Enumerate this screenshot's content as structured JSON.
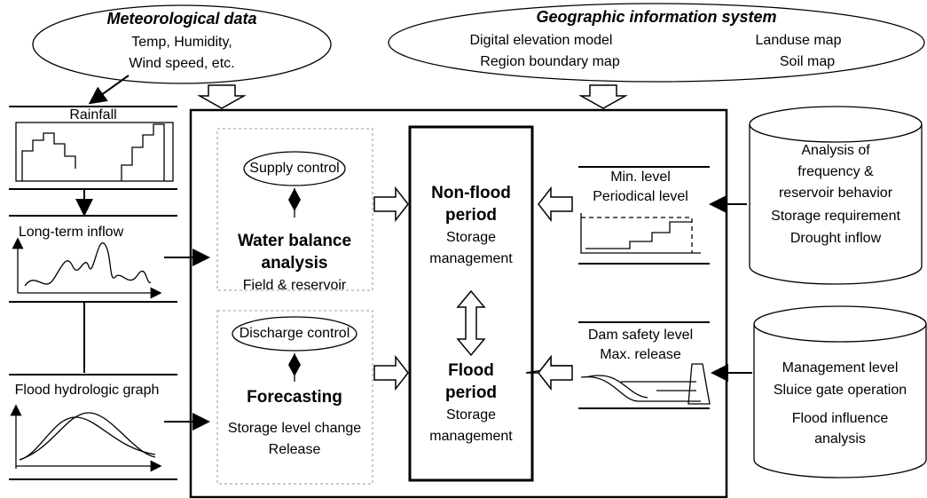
{
  "meteorological": {
    "title": "Meteorological data",
    "lines": [
      "Temp, Humidity,",
      "Wind speed, etc."
    ]
  },
  "gis": {
    "title": "Geographic information system",
    "items": [
      "Digital elevation model",
      "Landuse map",
      "Region boundary map",
      "Soil map"
    ]
  },
  "inputs": {
    "rainfall": "Rainfall",
    "long_term_inflow": "Long-term inflow",
    "flood_graph": "Flood hydrologic graph"
  },
  "water_balance": {
    "control": "Supply control",
    "title": [
      "Water balance",
      "analysis"
    ],
    "subtitle": "Field & reservoir"
  },
  "forecasting": {
    "control": "Discharge control",
    "title": "Forecasting",
    "lines": [
      "Storage level change",
      "Release"
    ]
  },
  "non_flood": {
    "title": [
      "Non-flood",
      "period"
    ],
    "lines": [
      "Storage",
      "management"
    ]
  },
  "flood": {
    "title": [
      "Flood",
      "period"
    ],
    "lines": [
      "Storage",
      "management"
    ]
  },
  "level_graphs": {
    "non_flood": [
      "Min. level",
      "Periodical level"
    ],
    "flood": [
      "Dam safety level",
      "Max. release"
    ]
  },
  "databases": {
    "drought": [
      "Analysis of",
      "frequency &",
      "reservoir behavior",
      "Storage requirement",
      "Drought inflow"
    ],
    "flood": [
      "Management level",
      "Sluice gate operation",
      "Flood influence",
      "analysis"
    ]
  }
}
